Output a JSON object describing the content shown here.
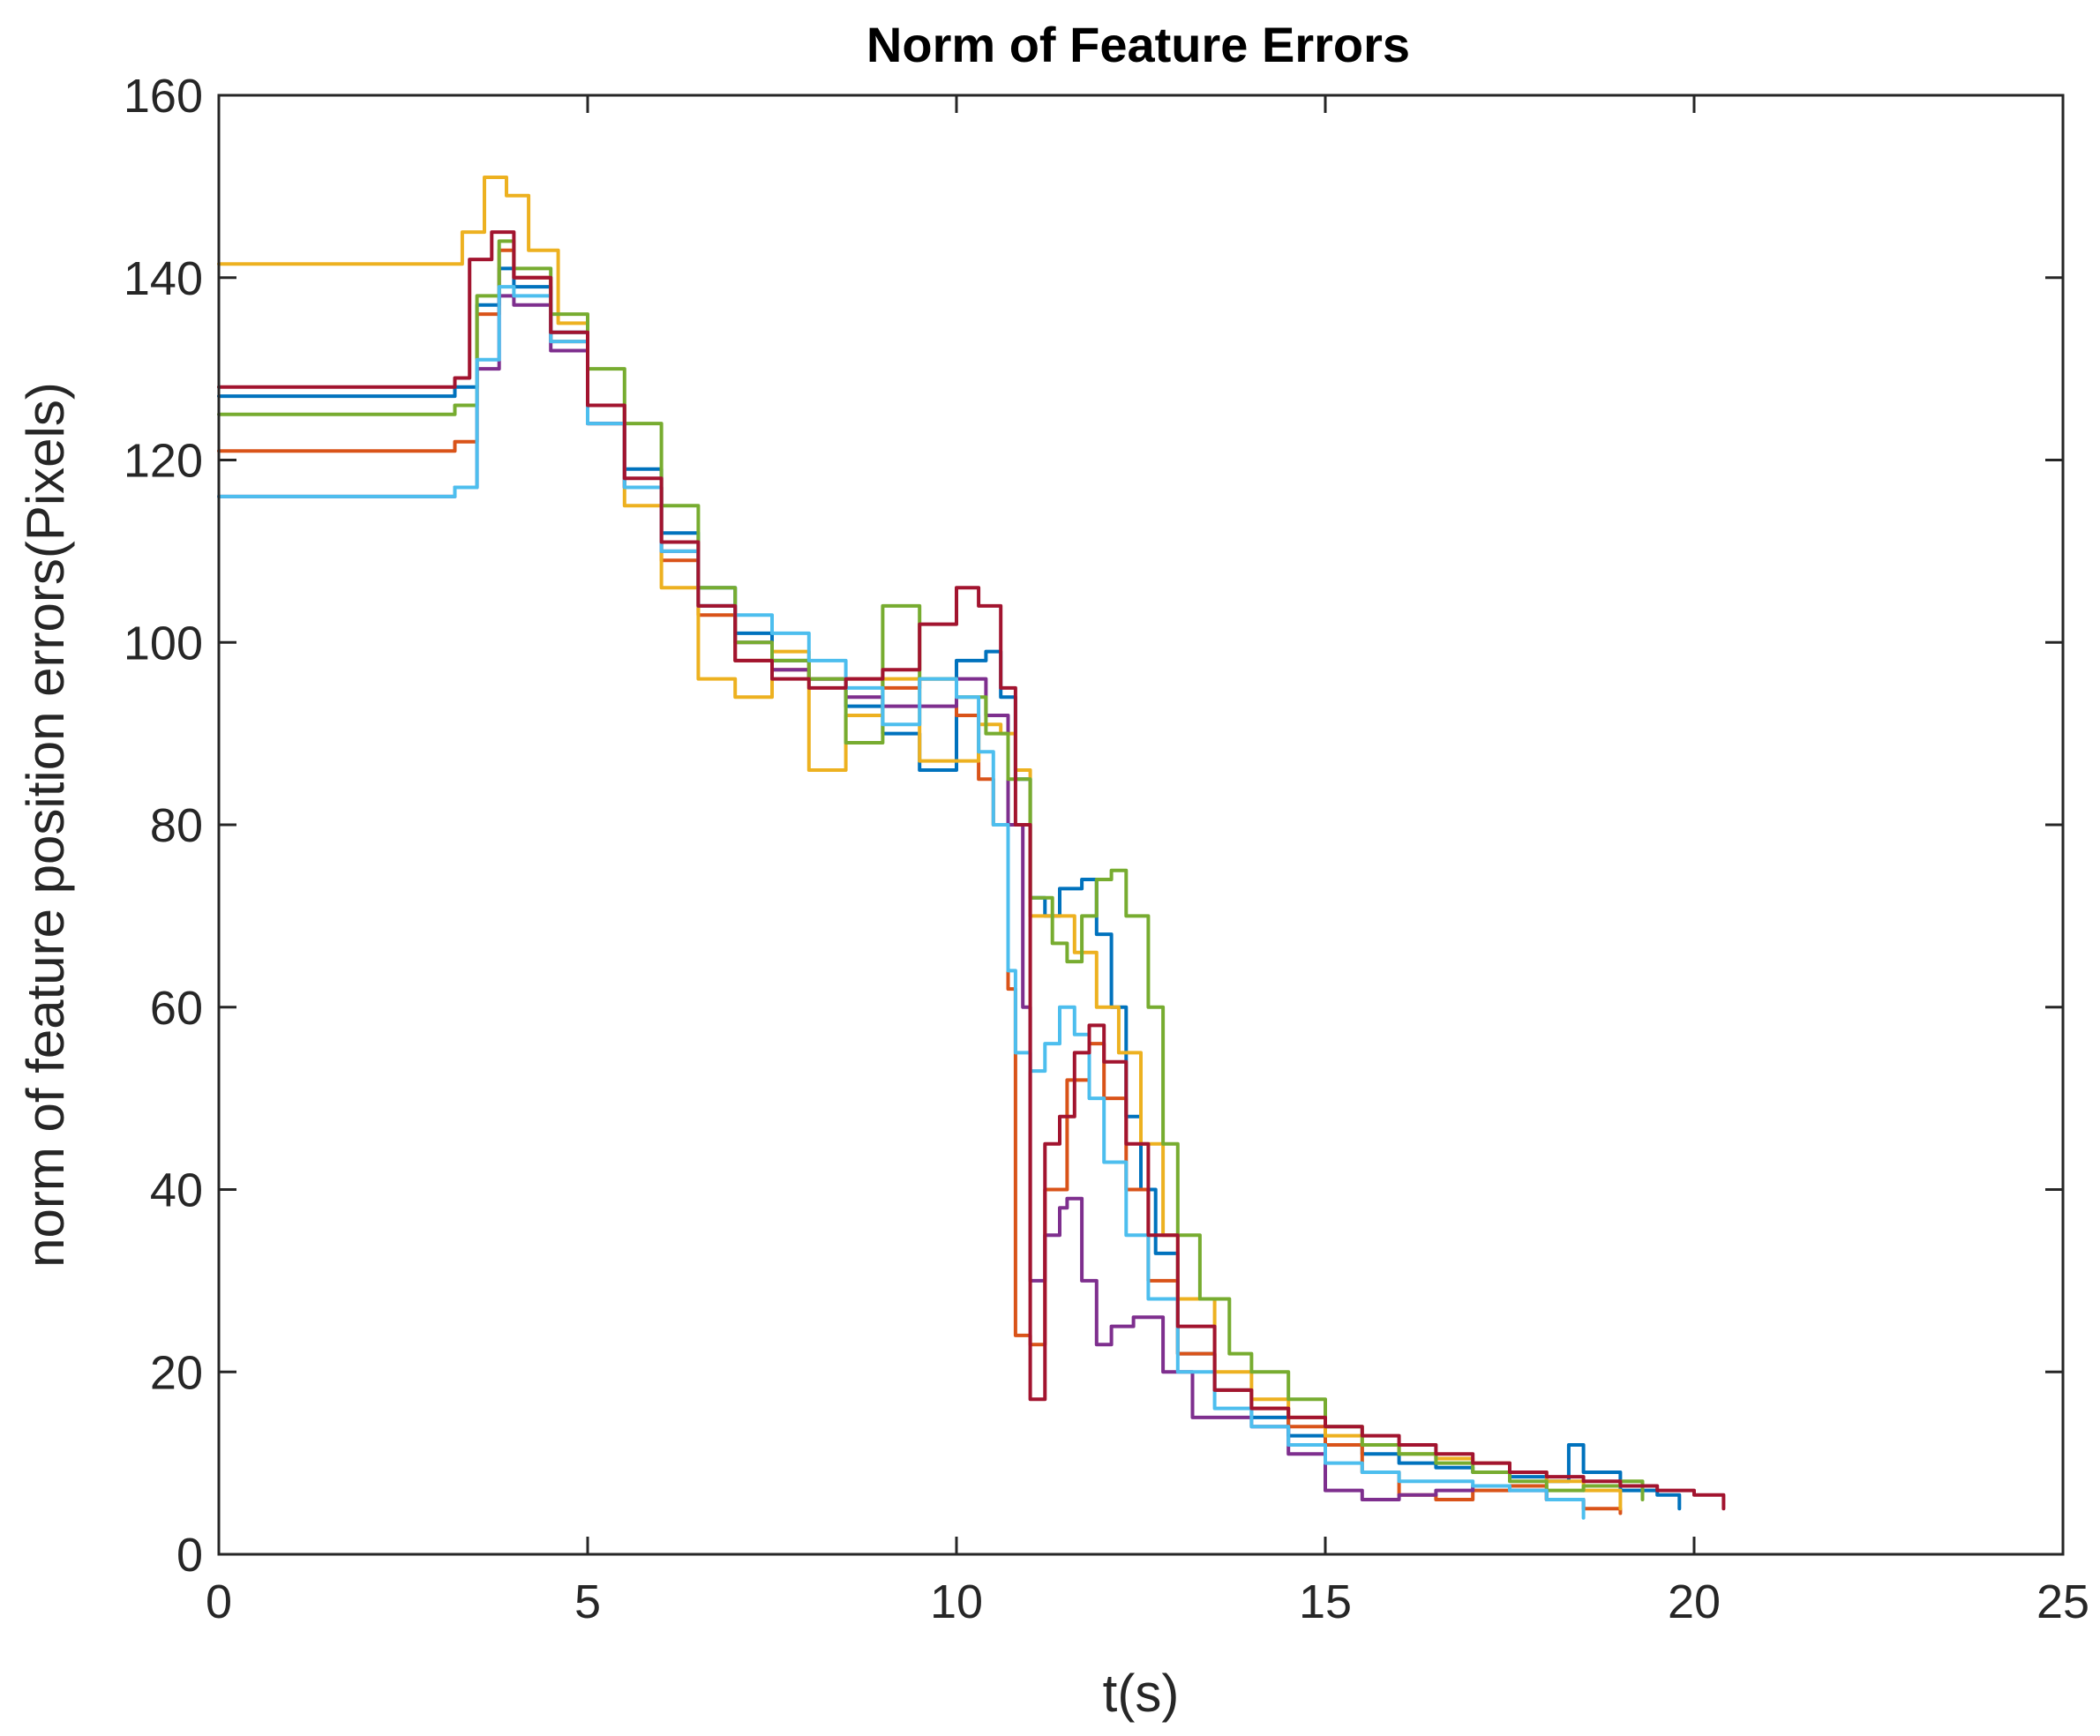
{
  "chart_data": {
    "type": "line",
    "title": "Norm of Feature Errors",
    "xlabel": "t(s)",
    "ylabel": "norm of feature position errors(Pixels)",
    "xlim": [
      0,
      25
    ],
    "ylim": [
      0,
      160
    ],
    "xticks": [
      0,
      5,
      10,
      15,
      20,
      25
    ],
    "yticks": [
      0,
      20,
      40,
      60,
      80,
      100,
      120,
      140,
      160
    ],
    "grid": false,
    "legend": "none",
    "series": [
      {
        "color": "#0072BD",
        "x": [
          0,
          3.1,
          3.2,
          3.5,
          3.8,
          4.0,
          4.5,
          5.0,
          5.5,
          6.0,
          6.5,
          7.0,
          7.5,
          8.0,
          8.5,
          9.0,
          9.5,
          10.0,
          10.4,
          10.6,
          10.8,
          11.0,
          11.2,
          11.4,
          11.7,
          11.9,
          12.1,
          12.3,
          12.5,
          12.7,
          13.0,
          13.5,
          14.0,
          14.5,
          15.0,
          15.5,
          16.0,
          16.5,
          17.0,
          17.5,
          18.0,
          18.3,
          18.5,
          19.0,
          19.5,
          19.8
        ],
        "y": [
          127,
          127,
          128,
          137,
          141,
          139,
          134,
          126,
          119,
          112,
          106,
          101,
          98,
          96,
          93,
          90,
          86,
          98,
          99,
          94,
          85,
          72,
          70,
          73,
          74,
          68,
          60,
          48,
          40,
          33,
          22,
          18,
          15,
          13,
          12,
          11,
          10,
          9.5,
          9,
          8.5,
          8,
          12,
          9,
          7,
          6.5,
          5
        ]
      },
      {
        "color": "#D95319",
        "x": [
          0,
          3.1,
          3.2,
          3.5,
          3.8,
          4.0,
          4.5,
          5.0,
          5.5,
          6.0,
          6.5,
          7.0,
          7.5,
          8.0,
          8.5,
          9.0,
          9.5,
          10.0,
          10.3,
          10.5,
          10.7,
          10.8,
          11.0,
          11.2,
          11.5,
          11.8,
          12.0,
          12.3,
          12.6,
          13.0,
          13.5,
          14.0,
          14.5,
          15.0,
          15.5,
          16.0,
          16.5,
          17.0,
          17.5,
          18.0,
          18.5,
          19.0
        ],
        "y": [
          121,
          121,
          122,
          136,
          143,
          140,
          133,
          124,
          117,
          109,
          103,
          98,
          97,
          96,
          96,
          95,
          96,
          92,
          85,
          80,
          62,
          24,
          23,
          40,
          52,
          56,
          50,
          40,
          30,
          22,
          18,
          16,
          14,
          12,
          9,
          6.5,
          6,
          7,
          7.5,
          6,
          5,
          4.5
        ]
      },
      {
        "color": "#EDB120",
        "x": [
          0,
          3.1,
          3.3,
          3.6,
          3.9,
          4.2,
          4.6,
          5.0,
          5.5,
          6.0,
          6.5,
          7.0,
          7.5,
          8.0,
          8.5,
          9.0,
          9.5,
          10.0,
          10.3,
          10.6,
          10.8,
          11.0,
          11.3,
          11.6,
          11.9,
          12.2,
          12.5,
          12.8,
          13.0,
          13.5,
          14.0,
          14.5,
          15.0,
          15.5,
          16.0,
          16.5,
          17.0,
          17.5,
          18.0,
          18.5,
          19.0
        ],
        "y": [
          141.5,
          141.5,
          145,
          151,
          149,
          143,
          135,
          126,
          115,
          106,
          96,
          94,
          99,
          86,
          92,
          96,
          87,
          87,
          91,
          90,
          86,
          70,
          70,
          66,
          60,
          55,
          45,
          35,
          28,
          20,
          17,
          15,
          13,
          12,
          11,
          10.5,
          10,
          9,
          8,
          7,
          5
        ]
      },
      {
        "color": "#7E2F8E",
        "x": [
          0,
          3.1,
          3.2,
          3.5,
          3.8,
          4.0,
          4.5,
          5.0,
          5.5,
          6.0,
          6.5,
          7.0,
          7.5,
          8.0,
          8.5,
          9.0,
          9.5,
          10.0,
          10.4,
          10.7,
          10.9,
          11.0,
          11.2,
          11.4,
          11.5,
          11.7,
          11.9,
          12.1,
          12.4,
          12.8,
          13.2,
          13.6,
          14.0,
          14.5,
          15.0,
          15.5,
          16.0,
          16.5,
          17.0,
          17.5,
          18.0,
          18.5
        ],
        "y": [
          116,
          116,
          117,
          130,
          138,
          137,
          132,
          124,
          117,
          110,
          104,
          100,
          97,
          96,
          94,
          93,
          93,
          96,
          92,
          80,
          60,
          30,
          35,
          38,
          39,
          30,
          23,
          25,
          26,
          20,
          15,
          15,
          14,
          11,
          7,
          6,
          6.5,
          7,
          7.5,
          7,
          6,
          5
        ]
      },
      {
        "color": "#77AC30",
        "x": [
          0,
          3.1,
          3.2,
          3.5,
          3.8,
          4.0,
          4.5,
          5.0,
          5.5,
          6.0,
          6.5,
          7.0,
          7.5,
          8.0,
          8.5,
          9.0,
          9.5,
          10.0,
          10.4,
          10.7,
          11.0,
          11.3,
          11.5,
          11.7,
          11.9,
          12.1,
          12.3,
          12.6,
          12.8,
          13.0,
          13.3,
          13.7,
          14.0,
          14.5,
          15.0,
          15.5,
          16.0,
          16.5,
          17.0,
          17.5,
          18.0,
          18.5,
          19.0,
          19.3
        ],
        "y": [
          125,
          125,
          126,
          138,
          144,
          141,
          136,
          130,
          124,
          115,
          106,
          100,
          98,
          96,
          89,
          104,
          96,
          94,
          90,
          85,
          72,
          67,
          65,
          70,
          74,
          75,
          70,
          60,
          45,
          35,
          28,
          22,
          20,
          17,
          14,
          12,
          11,
          10,
          9,
          8,
          7,
          7.5,
          8,
          6
        ]
      },
      {
        "color": "#4DBEEE",
        "x": [
          0,
          3.1,
          3.2,
          3.5,
          3.8,
          4.0,
          4.5,
          5.0,
          5.5,
          6.0,
          6.5,
          7.0,
          7.5,
          8.0,
          8.5,
          9.0,
          9.5,
          10.0,
          10.3,
          10.5,
          10.7,
          10.8,
          11.0,
          11.2,
          11.4,
          11.6,
          11.8,
          12.0,
          12.3,
          12.6,
          13.0,
          13.5,
          14.0,
          14.5,
          15.0,
          15.5,
          16.0,
          16.5,
          17.0,
          17.5,
          18.0,
          18.5
        ],
        "y": [
          116,
          116,
          117,
          131,
          139,
          138,
          133,
          124,
          117,
          110,
          104,
          103,
          101,
          98,
          95,
          91,
          96,
          94,
          88,
          80,
          64,
          55,
          53,
          56,
          60,
          57,
          50,
          43,
          35,
          28,
          20,
          16,
          14,
          12,
          10,
          9,
          8,
          8,
          7.5,
          7,
          6,
          4
        ]
      },
      {
        "color": "#A2142F",
        "x": [
          0,
          3.1,
          3.2,
          3.4,
          3.7,
          4.0,
          4.5,
          5.0,
          5.5,
          6.0,
          6.5,
          7.0,
          7.5,
          8.0,
          8.5,
          9.0,
          9.5,
          10.0,
          10.3,
          10.6,
          10.8,
          11.0,
          11.2,
          11.4,
          11.6,
          11.8,
          12.0,
          12.3,
          12.6,
          13.0,
          13.5,
          14.0,
          14.5,
          15.0,
          15.5,
          16.0,
          16.5,
          17.0,
          17.5,
          18.0,
          18.5,
          19.0,
          19.5,
          20.0,
          20.4
        ],
        "y": [
          128,
          128,
          129,
          142,
          145,
          140,
          134,
          126,
          118,
          111,
          104,
          98,
          96,
          95,
          96,
          97,
          102,
          106,
          104,
          95,
          80,
          17,
          45,
          48,
          55,
          58,
          54,
          45,
          35,
          25,
          18,
          16,
          15,
          14,
          13,
          12,
          11,
          10,
          9,
          8.5,
          8,
          7.5,
          7,
          6.5,
          5
        ]
      }
    ]
  }
}
